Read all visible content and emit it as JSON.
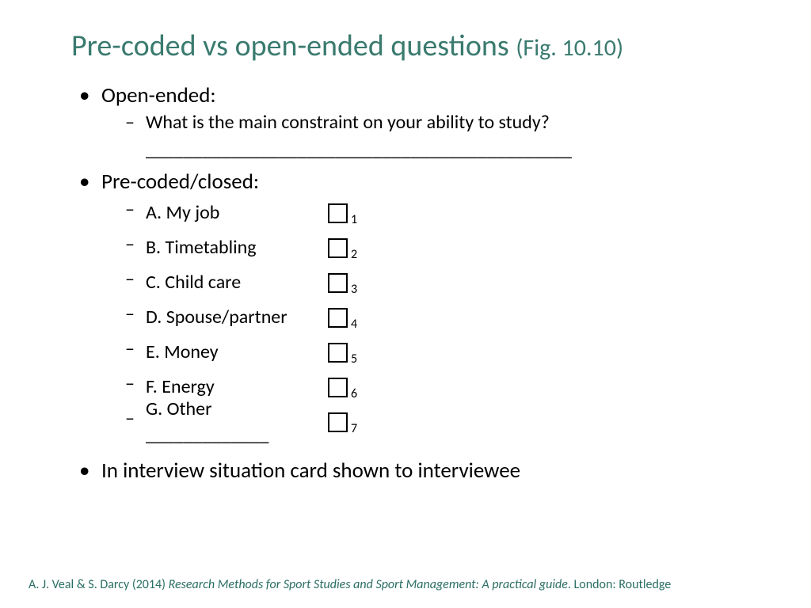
{
  "title": {
    "main": "Pre-coded vs open-ended questions ",
    "fig": "(Fig. 10.10)",
    "color": "#3a7a6f",
    "main_fontsize": 38,
    "fig_fontsize": 30
  },
  "open_ended": {
    "heading": "Open-ended:",
    "question": "What is the main constraint on your ability to study?",
    "blank": "_____________________________________________"
  },
  "pre_coded": {
    "heading": "Pre-coded/closed:",
    "options": [
      {
        "label": "A. My job",
        "num": "1"
      },
      {
        "label": "B. Timetabling",
        "num": "2"
      },
      {
        "label": "C. Child care",
        "num": "3"
      },
      {
        "label": "D. Spouse/partner",
        "num": "4"
      },
      {
        "label": "E. Money",
        "num": "5"
      },
      {
        "label": "F. Energy",
        "num": "6"
      },
      {
        "label": "G. Other _____________",
        "num": "7"
      }
    ]
  },
  "interview_note": "In interview situation card shown to interviewee",
  "citation": {
    "authors": "A. J. Veal & S. Darcy (2014) ",
    "title": "Research Methods for Sport Studies and Sport Management: A practical guide",
    "publisher": ". London: Routledge",
    "color": "#2a6e63",
    "fontsize": 16
  },
  "colors": {
    "background": "#ffffff",
    "body_text": "#000000",
    "checkbox_border": "#000000"
  }
}
